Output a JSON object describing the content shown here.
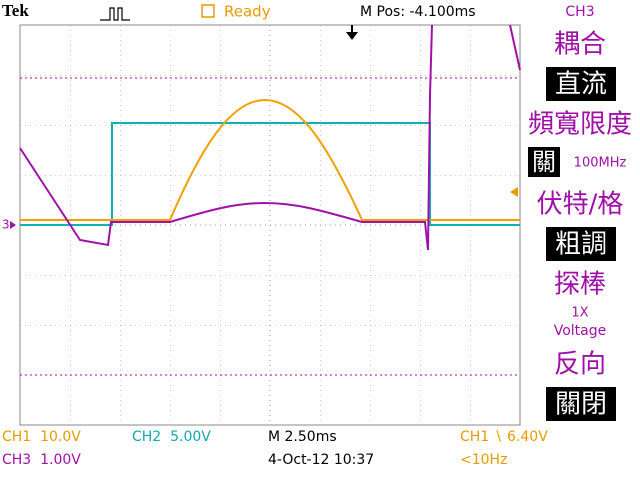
{
  "header": {
    "brand": "Tek",
    "status": "Ready",
    "position": "M Pos: -4.100ms"
  },
  "menu": {
    "channel": "CH3",
    "items": [
      {
        "title": "耦合",
        "value": "直流"
      },
      {
        "title": "頻寬限度",
        "value": "關",
        "extra": "100MHz"
      },
      {
        "title": "伏特/格",
        "value": "粗調"
      },
      {
        "title": "探棒",
        "value": "1X",
        "extra": "Voltage"
      },
      {
        "title": "反向",
        "value": "關閉"
      }
    ]
  },
  "footer": {
    "ch1_scale": "CH1  10.0V",
    "ch2_scale": "CH2  5.00V",
    "timebase": "M 2.50ms",
    "trigger": "CH1 ∖ 6.40V",
    "ch3_scale": "CH3  1.00V",
    "date": "4-Oct-12 10:37",
    "frequency": "<10Hz"
  },
  "marker": "3"
}
